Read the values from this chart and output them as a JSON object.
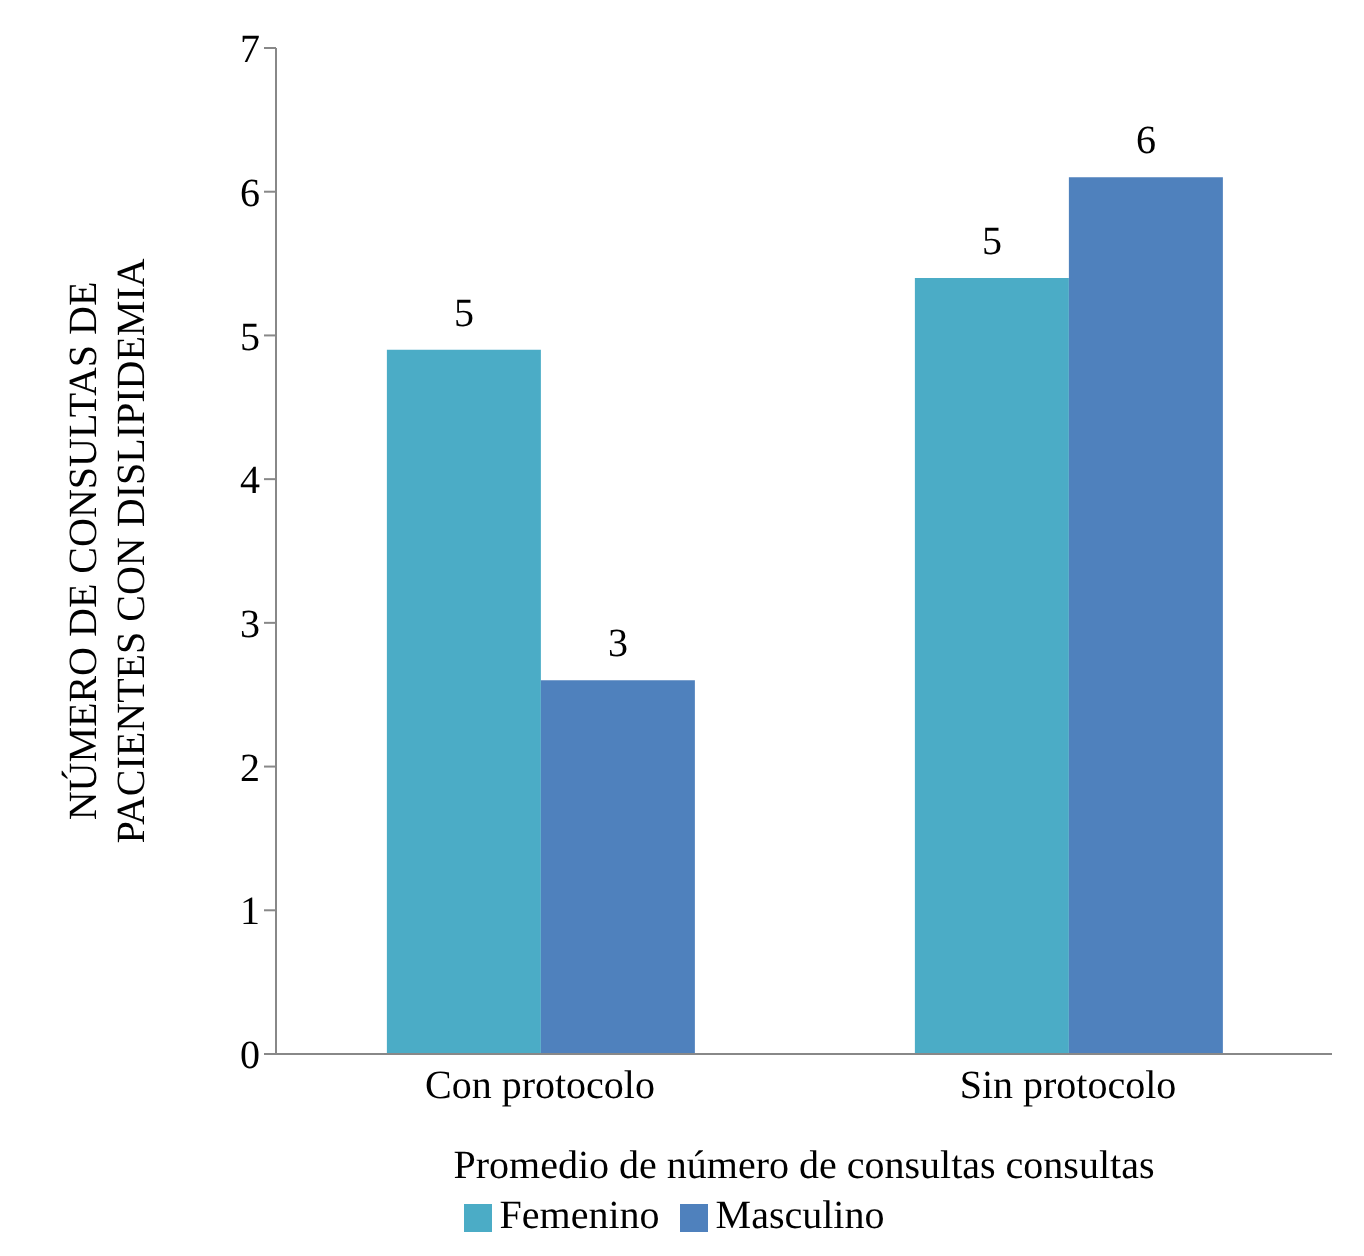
{
  "chart_data": {
    "type": "bar",
    "xlabel": "Promedio de número de consultas consultas",
    "ylabel": "NÚMERO DE CONSULTAS DE PACIENTES CON DISLIPIDEMIA",
    "categories": [
      "Con protocolo",
      "Sin protocolo"
    ],
    "series": [
      {
        "name": "Femenino",
        "color": "#4bacc6",
        "values": [
          4.9,
          5.4
        ],
        "value_labels": [
          "5",
          "5"
        ]
      },
      {
        "name": "Masculino",
        "color": "#4f81bd",
        "values": [
          2.6,
          6.1
        ],
        "value_labels": [
          "3",
          "6"
        ]
      }
    ],
    "ylim": [
      0,
      7
    ],
    "yticks": [
      0,
      1,
      2,
      3,
      4,
      5,
      6,
      7
    ],
    "grid": false,
    "legend": "bottom"
  }
}
